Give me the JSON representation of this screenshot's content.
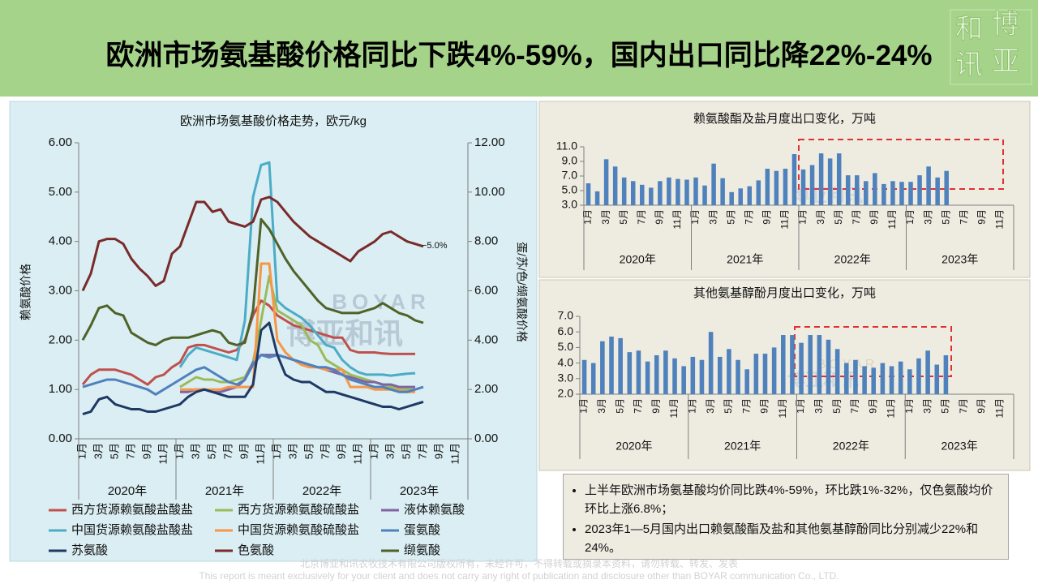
{
  "header": {
    "title": "欧洲市场氨基酸价格同比下跌4%-59%，国内出口同比降22%-24%"
  },
  "logo": [
    "和",
    "博",
    "讯",
    "亚"
  ],
  "watermark": {
    "latin": "BOYAR",
    "chinese": "博亚和讯"
  },
  "chart_data": [
    {
      "type": "line",
      "title": "欧洲市场氨基酸价格走势，欧元/kg",
      "ylabel": "赖氨酸价格",
      "y2label": "蛋/苏/色/缬氨酸价格",
      "annotation": "−5.0%",
      "categories": [
        "1月",
        null,
        "3月",
        null,
        "5月",
        null,
        "7月",
        null,
        "9月",
        null,
        "11月",
        null,
        "1月",
        null,
        "3月",
        null,
        "5月",
        null,
        "7月",
        null,
        "9月",
        null,
        "11月",
        null,
        "1月",
        null,
        "3月",
        null,
        "5月",
        null,
        "7月",
        null,
        "9月",
        null,
        "11月",
        null,
        "1月",
        null,
        "3月",
        null,
        "5月",
        null,
        "7月",
        null,
        "9月",
        null,
        "11月",
        null
      ],
      "year_labels": [
        "2020年",
        "2021年",
        "2022年",
        "2023年"
      ],
      "ylim": [
        0,
        6
      ],
      "yticks": [
        {
          "value": 0,
          "label": "0.00"
        },
        {
          "value": 1,
          "label": "1.00"
        },
        {
          "value": 2,
          "label": "2.00"
        },
        {
          "value": 3,
          "label": "3.00"
        },
        {
          "value": 4,
          "label": "4.00"
        },
        {
          "value": 5,
          "label": "5.00"
        },
        {
          "value": 6,
          "label": "6.00"
        }
      ],
      "y2lim": [
        0,
        12
      ],
      "y2ticks": [
        {
          "value": 0,
          "label": "0.00"
        },
        {
          "value": 2,
          "label": "2.00"
        },
        {
          "value": 4,
          "label": "4.00"
        },
        {
          "value": 6,
          "label": "6.00"
        },
        {
          "value": 8,
          "label": "8.00"
        },
        {
          "value": 10,
          "label": "10.00"
        },
        {
          "value": 12,
          "label": "12.00"
        }
      ],
      "series": [
        {
          "name": "西方货源赖氨酸盐酸盐",
          "color": "#c0504d",
          "values": [
            1.1,
            1.3,
            1.4,
            1.4,
            1.4,
            1.35,
            1.3,
            1.2,
            1.1,
            1.25,
            1.3,
            1.45,
            1.55,
            1.85,
            1.9,
            1.9,
            1.85,
            1.8,
            1.75,
            1.8,
            2.0,
            2.5,
            2.8,
            2.7,
            2.5,
            2.4,
            2.3,
            2.25,
            2.2,
            2.15,
            2.1,
            2.05,
            2.05,
            1.8,
            1.75,
            1.75,
            1.75,
            1.73,
            1.72,
            1.72,
            1.72,
            1.72,
            null,
            null,
            null,
            null,
            null,
            null
          ]
        },
        {
          "name": "西方货源赖氨酸硫酸盐",
          "color": "#9bbb59",
          "values": [
            null,
            null,
            null,
            null,
            null,
            null,
            null,
            null,
            null,
            null,
            null,
            null,
            1.05,
            1.15,
            1.25,
            1.2,
            1.2,
            1.15,
            1.15,
            1.2,
            1.25,
            1.55,
            2.4,
            3.3,
            2.6,
            2.5,
            2.4,
            2.3,
            2.0,
            1.9,
            1.6,
            1.5,
            1.4,
            1.3,
            1.25,
            1.2,
            1.15,
            1.1,
            1.05,
            1.0,
            1.0,
            1.0,
            null,
            null,
            null,
            null,
            null,
            null
          ]
        },
        {
          "name": "液体赖氨酸",
          "color": "#8064a2",
          "values": [
            null,
            null,
            null,
            null,
            null,
            null,
            null,
            null,
            null,
            null,
            null,
            null,
            0.95,
            0.95,
            1.0,
            1.0,
            0.95,
            0.95,
            1.0,
            1.05,
            1.2,
            1.55,
            1.7,
            1.7,
            1.7,
            1.65,
            1.6,
            1.55,
            1.5,
            1.45,
            1.4,
            1.35,
            1.3,
            1.25,
            1.2,
            1.15,
            1.15,
            1.1,
            1.1,
            1.05,
            1.05,
            1.05,
            null,
            null,
            null,
            null,
            null,
            null
          ]
        },
        {
          "name": "中国货源赖氨酸盐酸盐",
          "color": "#4bacc6",
          "values": [
            null,
            null,
            null,
            null,
            null,
            null,
            null,
            null,
            null,
            null,
            null,
            null,
            1.45,
            1.7,
            1.85,
            1.8,
            1.75,
            1.7,
            1.65,
            1.6,
            2.4,
            4.9,
            5.55,
            5.6,
            2.8,
            2.65,
            2.55,
            2.45,
            2.3,
            2.1,
            1.9,
            1.85,
            1.6,
            1.45,
            1.35,
            1.3,
            1.3,
            1.3,
            1.28,
            1.3,
            1.32,
            1.33,
            null,
            null,
            null,
            null,
            null,
            null
          ]
        },
        {
          "name": "中国货源赖氨酸硫酸盐",
          "color": "#f79646",
          "values": [
            null,
            null,
            null,
            null,
            null,
            null,
            null,
            null,
            null,
            null,
            null,
            null,
            1.0,
            1.0,
            1.0,
            1.0,
            1.0,
            1.0,
            1.05,
            1.05,
            1.05,
            1.05,
            3.55,
            3.55,
            2.0,
            1.75,
            1.6,
            1.5,
            1.45,
            1.45,
            1.4,
            1.4,
            1.4,
            1.05,
            1.05,
            1.05,
            1.0,
            1.0,
            1.0,
            0.98,
            0.95,
            0.95,
            null,
            null,
            null,
            null,
            null,
            null
          ]
        },
        {
          "name": "蛋氨酸",
          "color": "#4f81bd",
          "axis": "y2",
          "values": [
            2.1,
            2.2,
            2.3,
            2.4,
            2.4,
            2.3,
            2.2,
            2.1,
            2.0,
            1.8,
            2.0,
            2.2,
            2.4,
            2.6,
            2.8,
            2.9,
            2.7,
            2.5,
            2.3,
            2.2,
            2.4,
            3.0,
            3.4,
            3.3,
            3.4,
            3.3,
            3.2,
            3.1,
            3.0,
            2.9,
            2.9,
            2.8,
            2.6,
            2.4,
            2.3,
            2.2,
            2.1,
            2.1,
            2.0,
            1.9,
            1.9,
            2.0,
            2.1,
            null,
            null,
            null,
            null,
            null
          ]
        },
        {
          "name": "苏氨酸",
          "color": "#1f3864",
          "axis": "y2",
          "values": [
            1.0,
            1.1,
            1.6,
            1.7,
            1.4,
            1.3,
            1.2,
            1.2,
            1.1,
            1.1,
            1.2,
            1.3,
            1.4,
            1.7,
            1.9,
            2.0,
            1.9,
            1.8,
            1.7,
            1.7,
            1.7,
            2.2,
            4.4,
            4.7,
            3.4,
            2.6,
            2.4,
            2.3,
            2.3,
            2.1,
            1.9,
            1.9,
            1.8,
            1.7,
            1.6,
            1.5,
            1.4,
            1.3,
            1.3,
            1.2,
            1.3,
            1.4,
            1.5,
            null,
            null,
            null,
            null,
            null
          ]
        },
        {
          "name": "色氨酸",
          "color": "#7b2a2a",
          "axis": "y2",
          "values": [
            6.0,
            6.7,
            8.0,
            8.1,
            8.1,
            7.9,
            7.3,
            6.9,
            6.6,
            6.2,
            6.4,
            7.5,
            7.8,
            8.7,
            9.6,
            9.6,
            9.2,
            9.3,
            8.8,
            8.7,
            8.6,
            8.8,
            9.7,
            9.8,
            9.6,
            9.2,
            8.8,
            8.5,
            8.2,
            8.0,
            7.8,
            7.6,
            7.4,
            7.2,
            7.6,
            7.8,
            8.0,
            8.3,
            8.4,
            8.2,
            8.0,
            7.9,
            7.8,
            null,
            null,
            null,
            null,
            null
          ]
        },
        {
          "name": "缬氨酸",
          "color": "#4f6228",
          "axis": "y2",
          "values": [
            4.0,
            4.6,
            5.3,
            5.4,
            5.1,
            5.0,
            4.3,
            4.1,
            3.9,
            3.8,
            4.0,
            4.1,
            4.1,
            4.1,
            4.2,
            4.3,
            4.4,
            4.3,
            3.9,
            3.8,
            3.9,
            5.2,
            8.9,
            8.5,
            7.9,
            7.3,
            6.8,
            6.4,
            6.0,
            5.6,
            5.3,
            5.2,
            5.1,
            5.1,
            5.1,
            5.2,
            5.3,
            5.5,
            5.3,
            5.1,
            5.0,
            4.8,
            4.7,
            null,
            null,
            null,
            null,
            null
          ]
        }
      ]
    },
    {
      "type": "bar",
      "title": "赖氨酸酯及盐月度出口变化，万吨",
      "color": "#4f81bd",
      "categories": [
        "1月",
        null,
        "3月",
        null,
        "5月",
        null,
        "7月",
        null,
        "9月",
        null,
        "11月",
        null,
        "1月",
        null,
        "3月",
        null,
        "5月",
        null,
        "7月",
        null,
        "9月",
        null,
        "11月",
        null,
        "1月",
        null,
        "3月",
        null,
        "5月",
        null,
        "7月",
        null,
        "9月",
        null,
        "11月",
        null,
        "1月",
        null,
        "3月",
        null,
        "5月",
        null,
        "7月",
        null,
        "9月",
        null,
        "11月",
        null
      ],
      "year_labels": [
        "2020年",
        "2021年",
        "2022年",
        "2023年"
      ],
      "values": [
        6.0,
        4.9,
        9.3,
        8.3,
        6.8,
        6.3,
        5.8,
        5.4,
        6.3,
        6.8,
        6.6,
        6.5,
        6.8,
        5.7,
        8.7,
        6.7,
        4.8,
        5.3,
        5.6,
        6.4,
        8.0,
        7.7,
        8.0,
        10.0,
        7.9,
        8.5,
        10.1,
        9.4,
        10.1,
        7.1,
        7.1,
        6.3,
        7.4,
        5.9,
        6.3,
        6.2,
        6.2,
        7.1,
        8.3,
        6.8,
        7.7,
        null,
        null,
        null,
        null,
        null,
        null,
        null
      ],
      "ylim": [
        3,
        11
      ],
      "yticks": [
        {
          "value": 3,
          "label": "3.0"
        },
        {
          "value": 5,
          "label": "5.0"
        },
        {
          "value": 7,
          "label": "7.0"
        },
        {
          "value": 9,
          "label": "9.0"
        },
        {
          "value": 11,
          "label": "11.0"
        }
      ]
    },
    {
      "type": "bar",
      "title": "其他氨基醇酚月度出口变化，万吨",
      "color": "#4f81bd",
      "categories": [
        "1月",
        null,
        "3月",
        null,
        "5月",
        null,
        "7月",
        null,
        "9月",
        null,
        "11月",
        null,
        "1月",
        null,
        "3月",
        null,
        "5月",
        null,
        "7月",
        null,
        "9月",
        null,
        "11月",
        null,
        "1月",
        null,
        "3月",
        null,
        "5月",
        null,
        "7月",
        null,
        "9月",
        null,
        "11月",
        null,
        "1月",
        null,
        "3月",
        null,
        "5月",
        null,
        "7月",
        null,
        "9月",
        null,
        "11月",
        null
      ],
      "year_labels": [
        "2020年",
        "2021年",
        "2022年",
        "2023年"
      ],
      "values": [
        4.2,
        4.0,
        5.4,
        5.7,
        5.6,
        4.7,
        4.8,
        4.1,
        4.5,
        4.8,
        4.3,
        3.8,
        4.4,
        4.2,
        6.0,
        4.4,
        4.9,
        4.2,
        3.6,
        4.6,
        4.6,
        5.0,
        5.8,
        5.8,
        5.3,
        5.8,
        5.8,
        5.5,
        4.9,
        4.0,
        4.2,
        3.8,
        3.7,
        4.0,
        3.8,
        4.1,
        3.6,
        4.3,
        4.8,
        3.9,
        4.5,
        null,
        null,
        null,
        null,
        null,
        null,
        null
      ],
      "ylim": [
        2,
        7
      ],
      "yticks": [
        {
          "value": 2,
          "label": "2.0"
        },
        {
          "value": 3,
          "label": "3.0"
        },
        {
          "value": 4,
          "label": "4.0"
        },
        {
          "value": 5,
          "label": "5.0"
        },
        {
          "value": 6,
          "label": "6.0"
        },
        {
          "value": 7,
          "label": "7.0"
        }
      ]
    }
  ],
  "notes": [
    "上半年欧洲市场氨基酸均价同比跌4%-59%，环比跌1%-32%，仅色氨酸均价环比上涨6.8%；",
    "2023年1—5月国内出口赖氨酸酯及盐和其他氨基醇酚同比分别减少22%和24%。"
  ],
  "footer": [
    "北京博亚和讯农牧技术有限公司版权所有，未经许可，不得转载或摘录本资料，请勿转载、转发、发表",
    "This report is meant exclusively for your client and does not carry any right of publication and disclosure other than BOYAR communication Co., LTD."
  ]
}
